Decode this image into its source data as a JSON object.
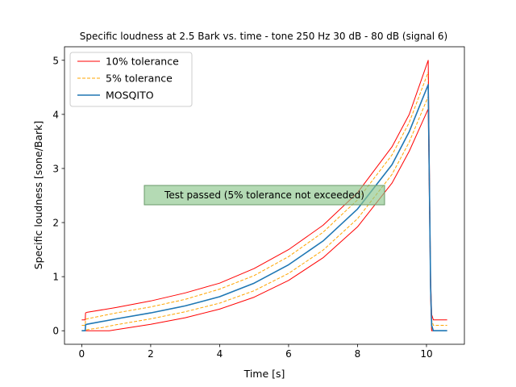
{
  "chart_data": {
    "type": "line",
    "title": "Specific loudness at 2.5 Bark vs. time - tone 250 Hz 30 dB - 80 dB (signal 6)",
    "xlabel": "Time [s]",
    "ylabel": "Specific loudness [sone/Bark]",
    "xlim": [
      -0.5,
      11.1
    ],
    "ylim": [
      -0.25,
      5.25
    ],
    "xticks": [
      0,
      2,
      4,
      6,
      8,
      10
    ],
    "yticks": [
      0,
      1,
      2,
      3,
      4,
      5
    ],
    "grid": false,
    "legend_position": "upper-left",
    "annotation": "Test passed (5% tolerance not exceeded)",
    "series": [
      {
        "name": "10% tolerance",
        "color": "#ff0000",
        "dash": "solid",
        "x": [
          0.0,
          0.1,
          0.11,
          0.15,
          1,
          2,
          3,
          4,
          5,
          6,
          7,
          8,
          9,
          9.5,
          10.05,
          10.12,
          10.15,
          10.2,
          10.6
        ],
        "y": [
          0.2,
          0.2,
          0.33,
          0.34,
          0.43,
          0.55,
          0.7,
          0.88,
          1.15,
          1.5,
          1.95,
          2.55,
          3.4,
          4.0,
          5.0,
          1.0,
          0.3,
          0.2,
          0.2
        ]
      },
      {
        "name": "5% tolerance",
        "color": "#ffa500",
        "dash": "dashed",
        "x": [
          0.0,
          0.1,
          0.11,
          0.15,
          1,
          2,
          3,
          4,
          5,
          6,
          7,
          8,
          9,
          9.5,
          10.05,
          10.12,
          10.15,
          10.2,
          10.6
        ],
        "y": [
          0.1,
          0.1,
          0.21,
          0.22,
          0.33,
          0.44,
          0.58,
          0.77,
          1.02,
          1.37,
          1.82,
          2.42,
          3.25,
          3.85,
          4.78,
          0.9,
          0.2,
          0.1,
          0.1
        ]
      },
      {
        "name": "MOSQITO",
        "color": "#1f77b4",
        "dash": "solid",
        "x": [
          0.0,
          0.1,
          0.11,
          0.15,
          1,
          2,
          3,
          4,
          5,
          6,
          7,
          8,
          9,
          9.5,
          10.05,
          10.12,
          10.15,
          10.2,
          10.6
        ],
        "y": [
          0.0,
          0.0,
          0.11,
          0.12,
          0.22,
          0.33,
          0.46,
          0.63,
          0.88,
          1.22,
          1.66,
          2.25,
          3.07,
          3.68,
          4.55,
          0.8,
          0.1,
          0.0,
          0.0
        ]
      },
      {
        "name": "",
        "color": "#ffa500",
        "dash": "dashed",
        "x": [
          0.0,
          0.1,
          0.11,
          0.15,
          0.6,
          1,
          2,
          3,
          4,
          5,
          6,
          7,
          8,
          9,
          9.5,
          10.05,
          10.12,
          10.15,
          10.2,
          10.6
        ],
        "y": [
          0.0,
          0.0,
          0.0,
          0.02,
          0.06,
          0.11,
          0.22,
          0.35,
          0.51,
          0.74,
          1.06,
          1.49,
          2.07,
          2.89,
          3.49,
          4.33,
          0.7,
          0.0,
          0.0,
          0.0
        ]
      },
      {
        "name": "",
        "color": "#ff0000",
        "dash": "solid",
        "x": [
          0.0,
          0.1,
          0.11,
          0.8,
          1,
          2,
          3,
          4,
          5,
          6,
          7,
          8,
          9,
          9.5,
          10.05,
          10.12,
          10.15,
          10.2,
          10.6
        ],
        "y": [
          0.0,
          0.0,
          0.0,
          0.0,
          0.02,
          0.12,
          0.24,
          0.4,
          0.62,
          0.93,
          1.35,
          1.92,
          2.73,
          3.32,
          4.1,
          0.6,
          0.0,
          0.0,
          0.0
        ]
      }
    ]
  }
}
